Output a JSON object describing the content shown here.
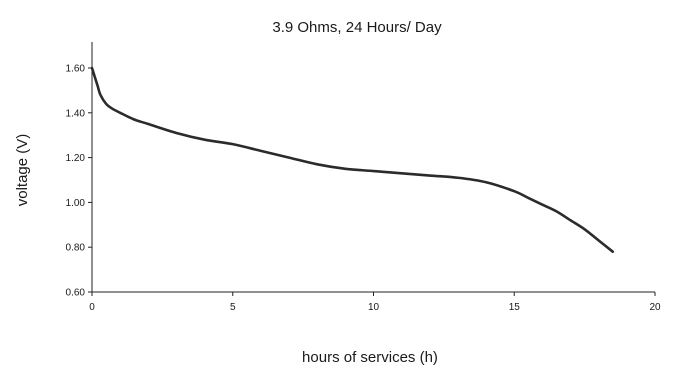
{
  "chart_data": {
    "type": "line",
    "title": "3.9 Ohms, 24 Hours/ Day",
    "xlabel": "hours of services (h)",
    "ylabel": "voltage (V)",
    "xlim": [
      0,
      20
    ],
    "ylim": [
      0.6,
      1.65
    ],
    "x_ticks": [
      "0",
      "5",
      "10",
      "15",
      "20"
    ],
    "y_ticks": [
      "0.60",
      "0.80",
      "1.00",
      "1.20",
      "1.40",
      "1.60"
    ],
    "grid": false,
    "line_color": "#2b2b2b",
    "series": [
      {
        "x": [
          0,
          0.1,
          0.2,
          0.3,
          0.5,
          0.7,
          1,
          1.5,
          2,
          3,
          4,
          5,
          6,
          7,
          8,
          9,
          10,
          11,
          12,
          13,
          14,
          15,
          15.5,
          16,
          16.5,
          17,
          17.5,
          18,
          18.5
        ],
        "y": [
          1.6,
          1.56,
          1.52,
          1.48,
          1.44,
          1.42,
          1.4,
          1.37,
          1.35,
          1.31,
          1.28,
          1.26,
          1.23,
          1.2,
          1.17,
          1.15,
          1.14,
          1.13,
          1.12,
          1.11,
          1.09,
          1.05,
          1.02,
          0.99,
          0.96,
          0.92,
          0.88,
          0.83,
          0.78
        ]
      }
    ]
  }
}
